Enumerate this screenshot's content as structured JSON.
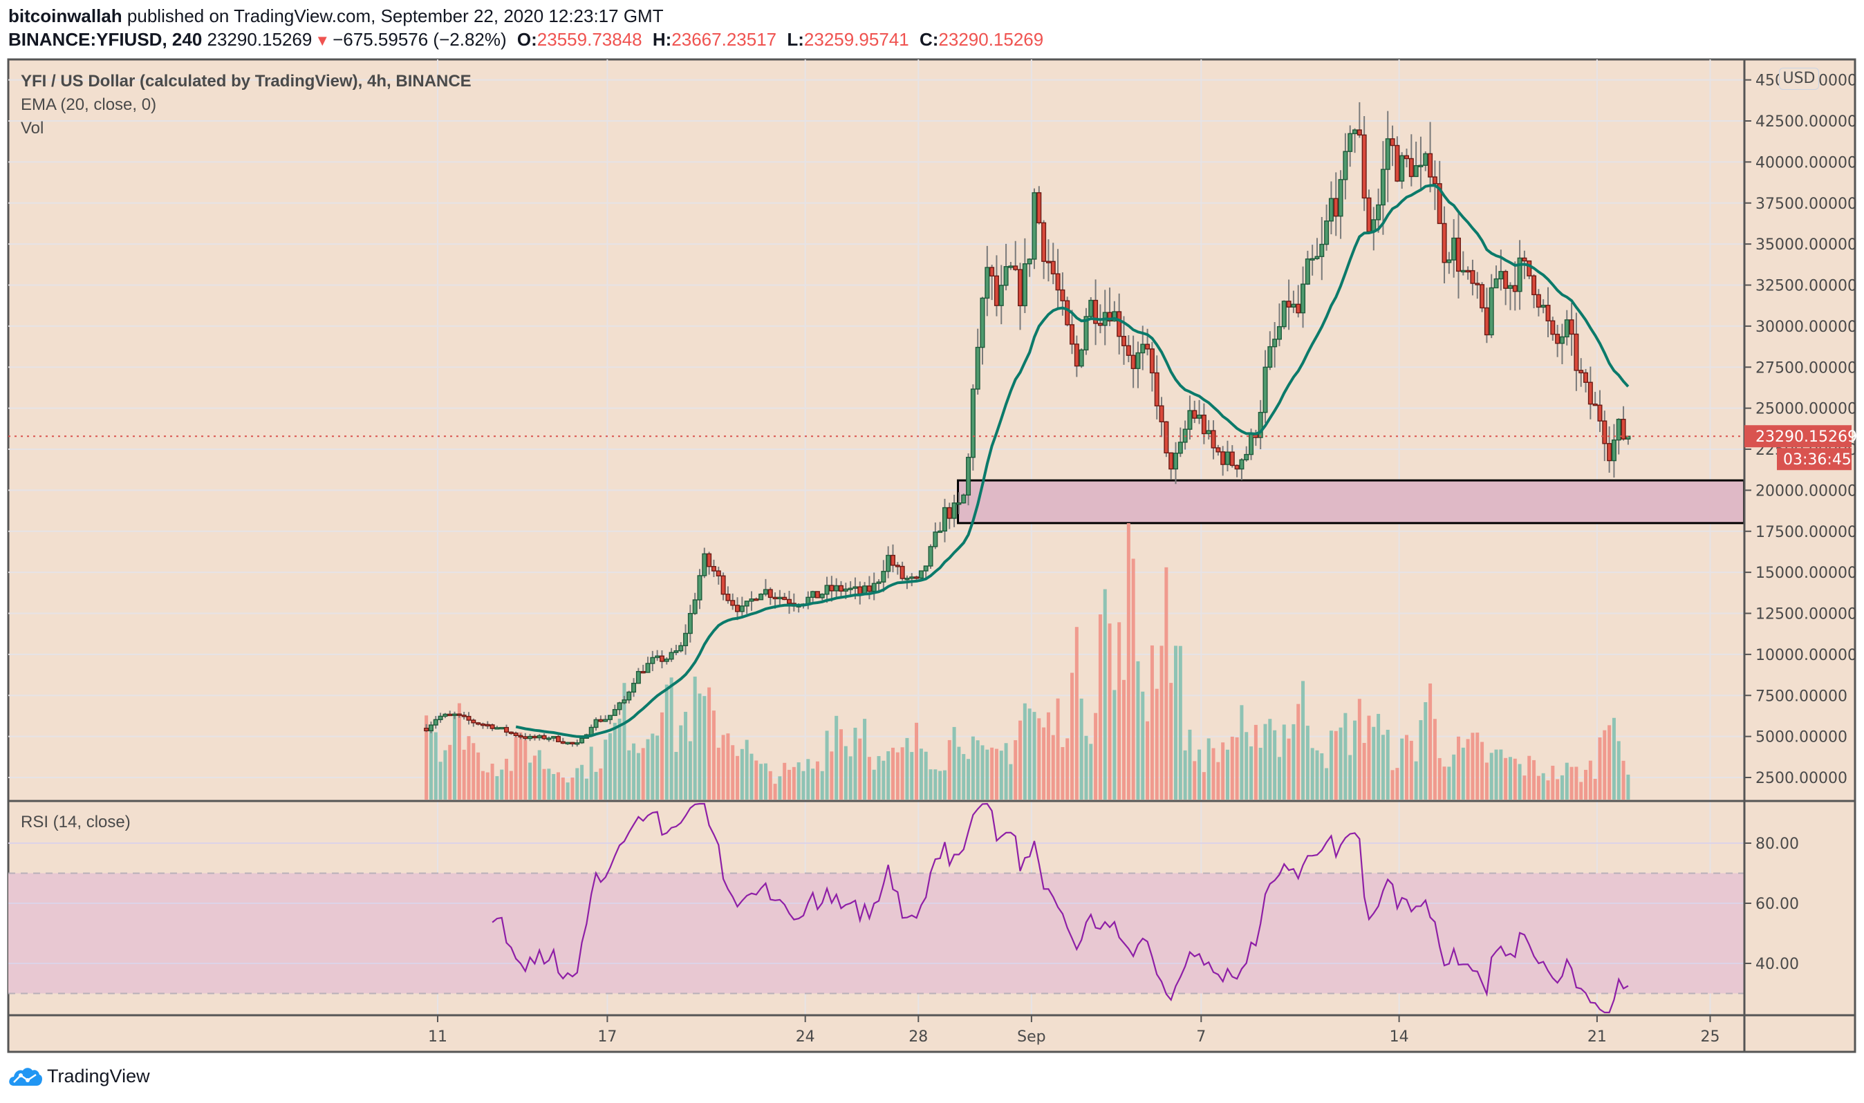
{
  "header": {
    "author": "bitcoinwallah",
    "published_text": "published on TradingView.com, September 22, 2020 12:23:17 GMT",
    "symbol": "BINANCE:YFIUSD, 240",
    "last": "23290.15269",
    "change": "−675.59576 (−2.82%)",
    "open_label": "O:",
    "open": "23559.73848",
    "high_label": "H:",
    "high": "23667.23517",
    "low_label": "L:",
    "low": "23259.95741",
    "close_label": "C:",
    "close": "23290.15269"
  },
  "legend": {
    "title": "YFI / US Dollar (calculated by TradingView), 4h, BINANCE",
    "ema": "EMA (20, close, 0)",
    "vol": "Vol",
    "rsi": "RSI (14, close)"
  },
  "price_axis": {
    "currency_button": "USD",
    "last_price_label": "23290.15269",
    "countdown_label": "03:36:45"
  },
  "branding": {
    "logo_text": "TradingView"
  },
  "colors": {
    "background": "#f2dfcf",
    "grid": "#e6e3e6",
    "up_body": "#4f9a6e",
    "up_border": "#1e5a3a",
    "down_body": "#d9493b",
    "down_border": "#6b1a14",
    "wick": "#7a7a7a",
    "ema": "#0b7a6a",
    "vol_up": "#8ec3b4",
    "vol_down": "#f09a8e",
    "rsi_line": "#8e1fa6",
    "rsi_band": "#e8c8d2",
    "zone_fill": "#dfb9c6",
    "last_price": "#d9534f",
    "axis_text": "#4a4a4a",
    "frame": "#555555"
  },
  "chart_data": {
    "type": "candlestick",
    "title": "YFI / US Dollar (calculated by TradingView), 4h, BINANCE",
    "interval": "4h",
    "x_ticks": [
      "11",
      "17",
      "24",
      "28",
      "Sep",
      "7",
      "14",
      "21",
      "25"
    ],
    "x_tick_day_offsets": [
      0,
      6,
      13,
      17,
      21,
      27,
      34,
      41,
      45
    ],
    "y_ticks": [
      "45000.00000",
      "42500.00000",
      "40000.00000",
      "37500.00000",
      "35000.00000",
      "32500.00000",
      "30000.00000",
      "27500.00000",
      "25000.00000",
      "22500.00000",
      "20000.00000",
      "17500.00000",
      "15000.00000",
      "12500.00000",
      "10000.00000",
      "7500.00000",
      "5000.00000",
      "2500.00000"
    ],
    "y_tick_values": [
      45000,
      42500,
      40000,
      37500,
      35000,
      32500,
      30000,
      27500,
      25000,
      22500,
      20000,
      17500,
      15000,
      12500,
      10000,
      7500,
      5000,
      2500
    ],
    "ylim": [
      2500,
      45000
    ],
    "rsi_ticks": [
      "80.00",
      "60.00",
      "40.00"
    ],
    "rsi_tick_values": [
      80,
      60,
      40
    ],
    "rsi_band": [
      30,
      70
    ],
    "last_price": 23290.15269,
    "support_zone": {
      "from_day": 18.4,
      "to_day": 46.2,
      "low": 18000,
      "high": 20600
    },
    "close_waypoints_day_price": [
      [
        -0.4,
        5500
      ],
      [
        0.0,
        6200
      ],
      [
        0.6,
        6300
      ],
      [
        1.2,
        5900
      ],
      [
        2.0,
        5600
      ],
      [
        2.6,
        5200
      ],
      [
        3.2,
        4900
      ],
      [
        4.0,
        4950
      ],
      [
        4.6,
        4600
      ],
      [
        5.0,
        4500
      ],
      [
        5.5,
        5900
      ],
      [
        6.0,
        6100
      ],
      [
        6.6,
        7200
      ],
      [
        7.0,
        8700
      ],
      [
        7.6,
        9600
      ],
      [
        8.2,
        9800
      ],
      [
        8.6,
        10400
      ],
      [
        9.0,
        12800
      ],
      [
        9.4,
        15800
      ],
      [
        9.8,
        15000
      ],
      [
        10.3,
        13400
      ],
      [
        10.8,
        12600
      ],
      [
        11.4,
        14000
      ],
      [
        12.0,
        13600
      ],
      [
        12.6,
        13200
      ],
      [
        13.2,
        13400
      ],
      [
        13.8,
        13900
      ],
      [
        14.4,
        14000
      ],
      [
        15.0,
        13700
      ],
      [
        15.5,
        14200
      ],
      [
        15.9,
        16000
      ],
      [
        16.4,
        14700
      ],
      [
        17.0,
        14300
      ],
      [
        17.5,
        16500
      ],
      [
        17.9,
        18600
      ],
      [
        18.4,
        18800
      ],
      [
        18.7,
        20000
      ],
      [
        18.95,
        27000
      ],
      [
        19.2,
        29500
      ],
      [
        19.4,
        34000
      ],
      [
        19.8,
        31000
      ],
      [
        20.2,
        33500
      ],
      [
        20.6,
        32000
      ],
      [
        20.9,
        34000
      ],
      [
        21.1,
        38000
      ],
      [
        21.4,
        35000
      ],
      [
        21.8,
        33000
      ],
      [
        22.2,
        30000
      ],
      [
        22.6,
        27500
      ],
      [
        23.0,
        31500
      ],
      [
        23.4,
        30800
      ],
      [
        23.8,
        31200
      ],
      [
        24.2,
        29500
      ],
      [
        24.6,
        27800
      ],
      [
        25.0,
        28500
      ],
      [
        25.4,
        26000
      ],
      [
        25.8,
        21500
      ],
      [
        26.2,
        22000
      ],
      [
        26.6,
        24800
      ],
      [
        27.0,
        24200
      ],
      [
        27.4,
        22500
      ],
      [
        27.8,
        22000
      ],
      [
        28.2,
        21600
      ],
      [
        28.6,
        22300
      ],
      [
        29.0,
        24000
      ],
      [
        29.3,
        27500
      ],
      [
        29.7,
        29500
      ],
      [
        30.1,
        31500
      ],
      [
        30.4,
        30500
      ],
      [
        30.8,
        33500
      ],
      [
        31.2,
        34000
      ],
      [
        31.6,
        37500
      ],
      [
        32.0,
        38000
      ],
      [
        32.3,
        43000
      ],
      [
        32.6,
        41000
      ],
      [
        32.9,
        36000
      ],
      [
        33.3,
        37500
      ],
      [
        33.6,
        41500
      ],
      [
        34.0,
        39500
      ],
      [
        34.4,
        40000
      ],
      [
        34.8,
        39000
      ],
      [
        35.2,
        40500
      ],
      [
        35.5,
        34500
      ],
      [
        35.9,
        35000
      ],
      [
        36.3,
        33000
      ],
      [
        36.7,
        32000
      ],
      [
        37.1,
        30000
      ],
      [
        37.5,
        33500
      ],
      [
        37.9,
        32500
      ],
      [
        38.3,
        33500
      ],
      [
        38.7,
        33000
      ],
      [
        39.1,
        31000
      ],
      [
        39.5,
        28500
      ],
      [
        39.9,
        30000
      ],
      [
        40.3,
        27500
      ],
      [
        40.7,
        25500
      ],
      [
        41.1,
        24500
      ],
      [
        41.5,
        22000
      ],
      [
        41.7,
        24000
      ],
      [
        41.9,
        23300
      ],
      [
        42.2,
        23290
      ]
    ],
    "volume_waypoints_day_value": [
      [
        -0.4,
        4000
      ],
      [
        0.3,
        2200
      ],
      [
        0.9,
        3500
      ],
      [
        1.4,
        1800
      ],
      [
        2.5,
        1500
      ],
      [
        3.1,
        2400
      ],
      [
        4.0,
        1300
      ],
      [
        5.0,
        1200
      ],
      [
        6.0,
        2200
      ],
      [
        6.6,
        3600
      ],
      [
        7.3,
        2400
      ],
      [
        8.0,
        5500
      ],
      [
        8.4,
        2800
      ],
      [
        9.2,
        4000
      ],
      [
        9.8,
        3200
      ],
      [
        10.5,
        2800
      ],
      [
        11.4,
        1200
      ],
      [
        12.5,
        1100
      ],
      [
        13.5,
        1600
      ],
      [
        14.0,
        3800
      ],
      [
        14.5,
        2300
      ],
      [
        15.0,
        3700
      ],
      [
        15.6,
        1500
      ],
      [
        16.4,
        1800
      ],
      [
        17.0,
        2500
      ],
      [
        17.8,
        1800
      ],
      [
        18.6,
        3300
      ],
      [
        19.1,
        1800
      ],
      [
        19.6,
        1600
      ],
      [
        20.3,
        2400
      ],
      [
        20.8,
        4100
      ],
      [
        21.3,
        3000
      ],
      [
        21.9,
        3200
      ],
      [
        22.4,
        4600
      ],
      [
        22.8,
        5800
      ],
      [
        23.1,
        3100
      ],
      [
        23.4,
        8300
      ],
      [
        23.7,
        7500
      ],
      [
        24.0,
        4300
      ],
      [
        24.4,
        10300
      ],
      [
        24.7,
        6500
      ],
      [
        25.1,
        4400
      ],
      [
        25.4,
        7000
      ],
      [
        25.8,
        8800
      ],
      [
        26.2,
        5300
      ],
      [
        26.6,
        2200
      ],
      [
        27.0,
        1900
      ],
      [
        27.6,
        2000
      ],
      [
        28.0,
        2500
      ],
      [
        28.4,
        3000
      ],
      [
        28.8,
        1500
      ],
      [
        29.2,
        4200
      ],
      [
        29.7,
        2500
      ],
      [
        30.1,
        3300
      ],
      [
        30.6,
        3900
      ],
      [
        31.0,
        3100
      ],
      [
        31.5,
        2000
      ],
      [
        32.0,
        2800
      ],
      [
        32.5,
        3100
      ],
      [
        33.0,
        3800
      ],
      [
        33.5,
        2200
      ],
      [
        34.0,
        1900
      ],
      [
        34.6,
        2400
      ],
      [
        35.0,
        4700
      ],
      [
        35.4,
        2200
      ],
      [
        35.8,
        2100
      ],
      [
        36.2,
        1900
      ],
      [
        36.8,
        2200
      ],
      [
        37.2,
        1700
      ],
      [
        37.7,
        1800
      ],
      [
        38.2,
        1400
      ],
      [
        38.8,
        1400
      ],
      [
        39.4,
        1100
      ],
      [
        40.0,
        1200
      ],
      [
        40.6,
        1100
      ],
      [
        41.0,
        1600
      ],
      [
        41.4,
        4000
      ],
      [
        41.6,
        5800
      ],
      [
        41.8,
        2700
      ],
      [
        42.0,
        1200
      ],
      [
        42.2,
        300
      ]
    ]
  }
}
